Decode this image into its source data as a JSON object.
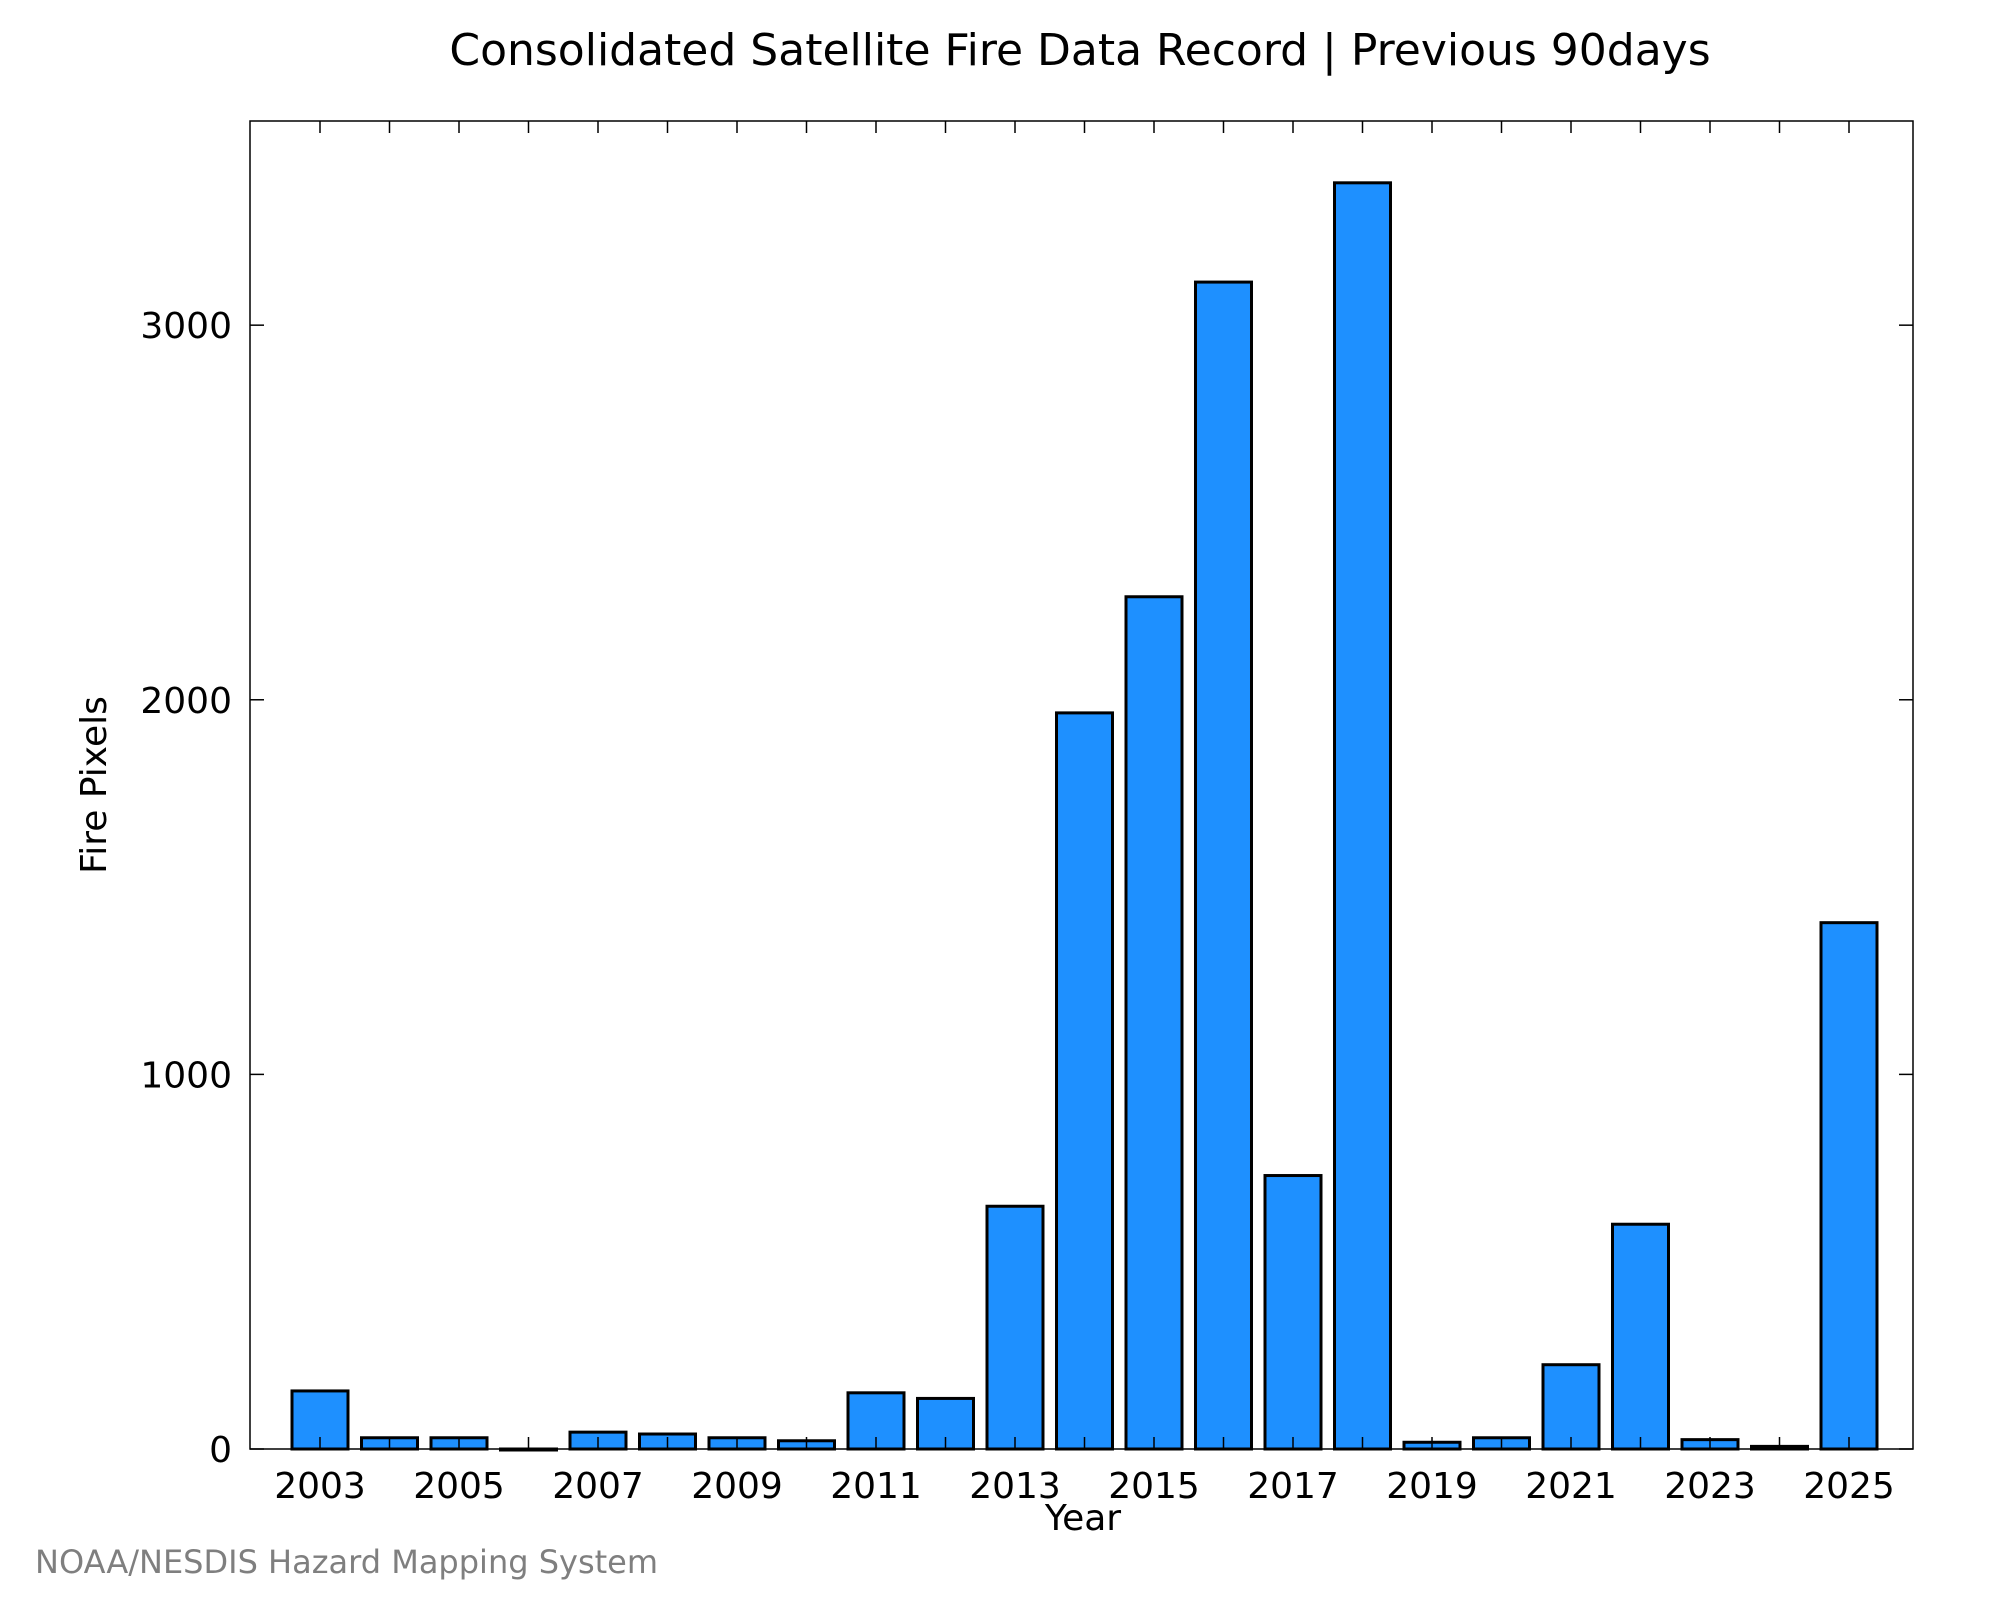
{
  "chart_data": {
    "type": "bar",
    "title": "Consolidated Satellite Fire Data Record | Previous 90days",
    "xlabel": "Year",
    "ylabel": "Fire Pixels",
    "categories": [
      "2003",
      "2004",
      "2005",
      "2006",
      "2007",
      "2008",
      "2009",
      "2010",
      "2011",
      "2012",
      "2013",
      "2014",
      "2015",
      "2016",
      "2017",
      "2018",
      "2019",
      "2020",
      "2021",
      "2022",
      "2023",
      "2024",
      "2025"
    ],
    "values": [
      155,
      30,
      30,
      0,
      45,
      40,
      30,
      22,
      150,
      135,
      648,
      1965,
      2275,
      3115,
      730,
      3380,
      18,
      30,
      225,
      600,
      25,
      7,
      1405
    ],
    "x_tick_labels": [
      "2003",
      "2005",
      "2007",
      "2009",
      "2011",
      "2013",
      "2015",
      "2017",
      "2019",
      "2021",
      "2023",
      "2025"
    ],
    "y_tick_labels": [
      "0",
      "1000",
      "2000",
      "3000"
    ],
    "y_ticks": [
      0,
      1000,
      2000,
      3000
    ],
    "ylim": [
      0,
      3545
    ],
    "grid": false,
    "bar_color": "#1e90ff",
    "edge_color": "#000000"
  },
  "credit": "NOAA/NESDIS Hazard Mapping System"
}
